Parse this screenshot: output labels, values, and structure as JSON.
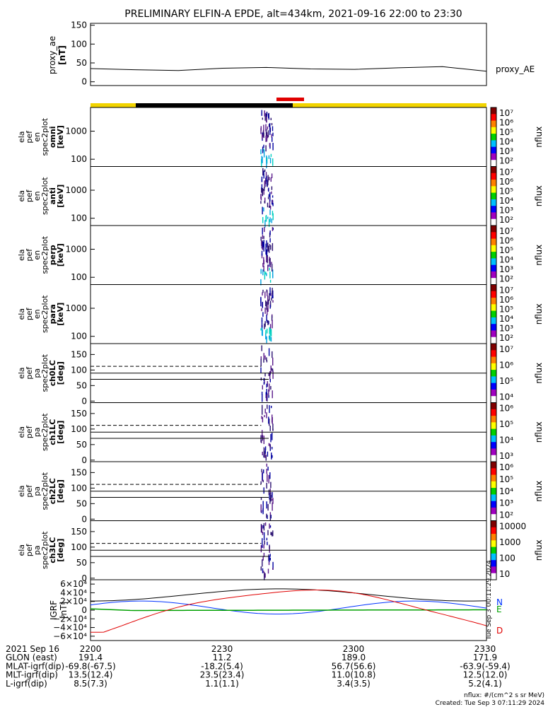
{
  "title": "PRELIMINARY ELFIN-A EPDE, alt=434km, 2021-09-16 22:00 to 23:30",
  "colors": {
    "yellow_bar": "#f2d400",
    "black_bar": "#000000",
    "red_bar": "#e00000",
    "ae_line": "#000000",
    "grf_black": "#000000",
    "grf_blue": "#0033ff",
    "grf_green": "#00a000",
    "grf_red": "#e00000"
  },
  "chart_data": [
    {
      "type": "line",
      "id": "proxy_ae",
      "ylabel": [
        "proxy_ae",
        "[nT]"
      ],
      "ylim": [
        -10,
        155
      ],
      "yticks": [
        "150",
        "100",
        "50",
        "0"
      ],
      "yticks_vals": [
        150,
        100,
        50,
        0
      ],
      "series": [
        {
          "name": "proxy_AE",
          "x_min": [
            0,
            10,
            20,
            30,
            40,
            50,
            60,
            70,
            80,
            90
          ],
          "values": [
            35,
            32,
            30,
            36,
            38,
            34,
            33,
            37,
            40,
            28
          ]
        }
      ]
    },
    {
      "type": "heatmap",
      "id": "omni",
      "ylabel": [
        "ela",
        "pef",
        "en",
        "spec2plot",
        "omni",
        "[keV]"
      ],
      "yticks": [
        "1000",
        "100"
      ],
      "yticks_vals": [
        1000,
        100
      ],
      "ylim_log": [
        55,
        7000
      ],
      "cb_label": "nflux",
      "cb_ticks": [
        "10⁷",
        "10⁶",
        "10⁵",
        "10⁴",
        "10³",
        "10²"
      ]
    },
    {
      "type": "heatmap",
      "id": "anti",
      "ylabel": [
        "ela",
        "pef",
        "en",
        "spec2plot",
        "anti",
        "[keV]"
      ],
      "yticks": [
        "1000",
        "100"
      ],
      "yticks_vals": [
        1000,
        100
      ],
      "ylim_log": [
        55,
        7000
      ],
      "cb_label": "nflux",
      "cb_ticks": [
        "10⁷",
        "10⁶",
        "10⁵",
        "10⁴",
        "10³",
        "10²"
      ]
    },
    {
      "type": "heatmap",
      "id": "perp",
      "ylabel": [
        "ela",
        "pef",
        "en",
        "spec2plot",
        "perp",
        "[keV]"
      ],
      "yticks": [
        "1000",
        "100"
      ],
      "yticks_vals": [
        1000,
        100
      ],
      "ylim_log": [
        55,
        7000
      ],
      "cb_label": "nflux",
      "cb_ticks": [
        "10⁷",
        "10⁶",
        "10⁵",
        "10⁴",
        "10³",
        "10²"
      ]
    },
    {
      "type": "heatmap",
      "id": "para",
      "ylabel": [
        "ela",
        "pef",
        "en",
        "spec2plot",
        "para",
        "[keV]"
      ],
      "yticks": [
        "1000",
        "100"
      ],
      "yticks_vals": [
        1000,
        100
      ],
      "ylim_log": [
        55,
        7000
      ],
      "cb_label": "nflux",
      "cb_ticks": [
        "10⁷",
        "10⁶",
        "10⁵",
        "10⁴",
        "10³",
        "10²"
      ]
    },
    {
      "type": "heatmap",
      "id": "ch0LC",
      "ylabel": [
        "ela",
        "pef",
        "pa",
        "spec2plot",
        "ch0LC",
        "[deg]"
      ],
      "yticks": [
        "150",
        "100",
        "50",
        "0"
      ],
      "yticks_vals": [
        150,
        100,
        50,
        0
      ],
      "ylim": [
        -5,
        185
      ],
      "cb_label": "nflux",
      "cb_ticks": [
        "10⁷",
        "10⁶",
        "10⁵",
        "10⁴"
      ]
    },
    {
      "type": "heatmap",
      "id": "ch1LC",
      "ylabel": [
        "ela",
        "pef",
        "pa",
        "spec2plot",
        "ch1LC",
        "[deg]"
      ],
      "yticks": [
        "150",
        "100",
        "50",
        "0"
      ],
      "yticks_vals": [
        150,
        100,
        50,
        0
      ],
      "ylim": [
        -5,
        185
      ],
      "cb_label": "nflux",
      "cb_ticks": [
        "10⁶",
        "10⁵",
        "10⁴",
        "10³"
      ]
    },
    {
      "type": "heatmap",
      "id": "ch2LC",
      "ylabel": [
        "ela",
        "pef",
        "pa",
        "spec2plot",
        "ch2LC",
        "[deg]"
      ],
      "yticks": [
        "150",
        "100",
        "50",
        "0"
      ],
      "yticks_vals": [
        150,
        100,
        50,
        0
      ],
      "ylim": [
        -5,
        185
      ],
      "cb_label": "nflux",
      "cb_ticks": [
        "10⁶",
        "10⁵",
        "10⁴",
        "10³",
        "10²"
      ]
    },
    {
      "type": "heatmap",
      "id": "ch3LC",
      "ylabel": [
        "ela",
        "pef",
        "pa",
        "spec2plot",
        "ch3LC",
        "[deg]"
      ],
      "yticks": [
        "150",
        "100",
        "50",
        "0"
      ],
      "yticks_vals": [
        150,
        100,
        50,
        0
      ],
      "ylim": [
        -5,
        185
      ],
      "cb_label": "nflux",
      "cb_ticks": [
        "10000",
        "1000",
        "100",
        "10"
      ]
    },
    {
      "type": "line",
      "id": "igrf",
      "ylabel": [
        "IGRF",
        "[nT]"
      ],
      "ylim": [
        -70000,
        70000
      ],
      "yticks": [
        "6×10⁴",
        "4×10⁴",
        "2×10⁴",
        "0",
        "−2×10⁴",
        "−4×10⁴",
        "−6×10⁴"
      ],
      "yticks_vals": [
        60000,
        40000,
        20000,
        0,
        -20000,
        -40000,
        -60000
      ],
      "side_labels": [
        "N",
        "E",
        "D"
      ],
      "stamp": "Tue Sep  3 00:11:29 2024"
    }
  ],
  "footer": {
    "rows": [
      {
        "label": "2021 Sep 16",
        "v": [
          "2200",
          "2230",
          "2300",
          "2330"
        ]
      },
      {
        "label": "GLON (east)",
        "v": [
          "191.4",
          "11.2",
          "189.0",
          "171.9"
        ]
      },
      {
        "label": "MLAT-igrf(dip)",
        "v": [
          "-69.8(-67.5)",
          "-18.2(5.4)",
          "56.7(56.6)",
          "-63.9(-59.4)"
        ]
      },
      {
        "label": "MLT-igrf(dip)",
        "v": [
          "13.5(12.4)",
          "23.5(23.4)",
          "11.0(10.8)",
          "12.5(12.0)"
        ]
      },
      {
        "label": "L-igrf(dip)",
        "v": [
          "8.5(7.3)",
          "1.1(1.1)",
          "3.4(3.5)",
          "5.2(4.1)"
        ]
      }
    ],
    "nflux_units": "nflux: #/(cm^2 s sr MeV)",
    "created": "Created: Tue Sep  3 07:11:29 2024"
  }
}
